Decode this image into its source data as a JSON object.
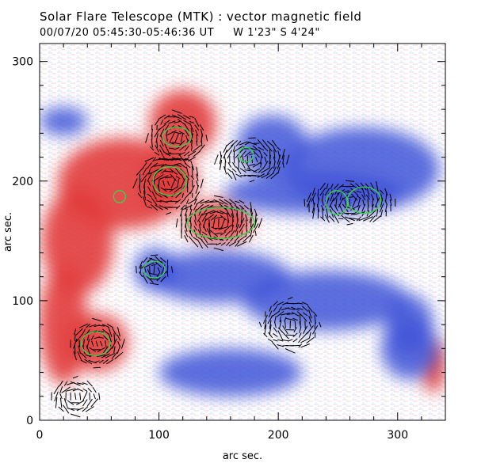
{
  "header": {
    "title": "Solar Flare Telescope (MTK) : vector magnetic field",
    "datetime": "00/07/20  05:45:30-05:46:36 UT",
    "coords": "W 1'23\"  S 4'24\""
  },
  "chart_data": {
    "type": "heatmap",
    "xlabel": "arc sec.",
    "ylabel": "arc sec.",
    "xlim": [
      0,
      340
    ],
    "ylim": [
      0,
      315
    ],
    "xticks": [
      "0",
      "100",
      "200",
      "300"
    ],
    "yticks": [
      "0",
      "100",
      "200",
      "300"
    ],
    "grid": false,
    "colors": {
      "positive": "#e23b3b",
      "negative": "#3f55d8",
      "contour": "#39d24a",
      "vector": "#000000"
    },
    "regions": {
      "positive": [
        {
          "x": 120,
          "y": 248,
          "rx": 28,
          "ry": 28
        },
        {
          "x": 70,
          "y": 198,
          "rx": 55,
          "ry": 38
        },
        {
          "x": 108,
          "y": 200,
          "rx": 24,
          "ry": 24
        },
        {
          "x": 150,
          "y": 166,
          "rx": 28,
          "ry": 18
        },
        {
          "x": 32,
          "y": 150,
          "rx": 30,
          "ry": 45
        },
        {
          "x": 20,
          "y": 80,
          "rx": 20,
          "ry": 50
        },
        {
          "x": 48,
          "y": 65,
          "rx": 26,
          "ry": 24
        },
        {
          "x": 330,
          "y": 45,
          "rx": 10,
          "ry": 22
        }
      ],
      "negative": [
        {
          "x": 270,
          "y": 210,
          "rx": 65,
          "ry": 35
        },
        {
          "x": 230,
          "y": 190,
          "rx": 75,
          "ry": 18
        },
        {
          "x": 195,
          "y": 230,
          "rx": 30,
          "ry": 25
        },
        {
          "x": 97,
          "y": 126,
          "rx": 18,
          "ry": 18
        },
        {
          "x": 150,
          "y": 120,
          "rx": 60,
          "ry": 22
        },
        {
          "x": 240,
          "y": 100,
          "rx": 70,
          "ry": 25
        },
        {
          "x": 310,
          "y": 80,
          "rx": 20,
          "ry": 25
        },
        {
          "x": 160,
          "y": 40,
          "rx": 60,
          "ry": 20
        },
        {
          "x": 310,
          "y": 60,
          "rx": 24,
          "ry": 26
        },
        {
          "x": 20,
          "y": 250,
          "rx": 20,
          "ry": 12
        }
      ]
    },
    "contours": [
      {
        "x": 115,
        "y": 237,
        "rx": 12,
        "ry": 8
      },
      {
        "x": 109,
        "y": 200,
        "rx": 14,
        "ry": 12
      },
      {
        "x": 67,
        "y": 187,
        "rx": 5,
        "ry": 5
      },
      {
        "x": 152,
        "y": 165,
        "rx": 28,
        "ry": 13
      },
      {
        "x": 173,
        "y": 222,
        "rx": 6,
        "ry": 6
      },
      {
        "x": 96,
        "y": 126,
        "rx": 9,
        "ry": 7
      },
      {
        "x": 249,
        "y": 182,
        "rx": 9,
        "ry": 10
      },
      {
        "x": 272,
        "y": 184,
        "rx": 14,
        "ry": 11
      },
      {
        "x": 47,
        "y": 64,
        "rx": 12,
        "ry": 10
      }
    ],
    "vector_clusters": [
      {
        "x": 115,
        "y": 236,
        "rx": 25,
        "ry": 22
      },
      {
        "x": 108,
        "y": 198,
        "rx": 28,
        "ry": 25
      },
      {
        "x": 150,
        "y": 165,
        "rx": 35,
        "ry": 22
      },
      {
        "x": 178,
        "y": 218,
        "rx": 30,
        "ry": 18
      },
      {
        "x": 260,
        "y": 182,
        "rx": 38,
        "ry": 18
      },
      {
        "x": 96,
        "y": 126,
        "rx": 15,
        "ry": 12
      },
      {
        "x": 48,
        "y": 64,
        "rx": 22,
        "ry": 20
      },
      {
        "x": 30,
        "y": 20,
        "rx": 20,
        "ry": 16
      },
      {
        "x": 210,
        "y": 80,
        "rx": 25,
        "ry": 22
      }
    ]
  }
}
